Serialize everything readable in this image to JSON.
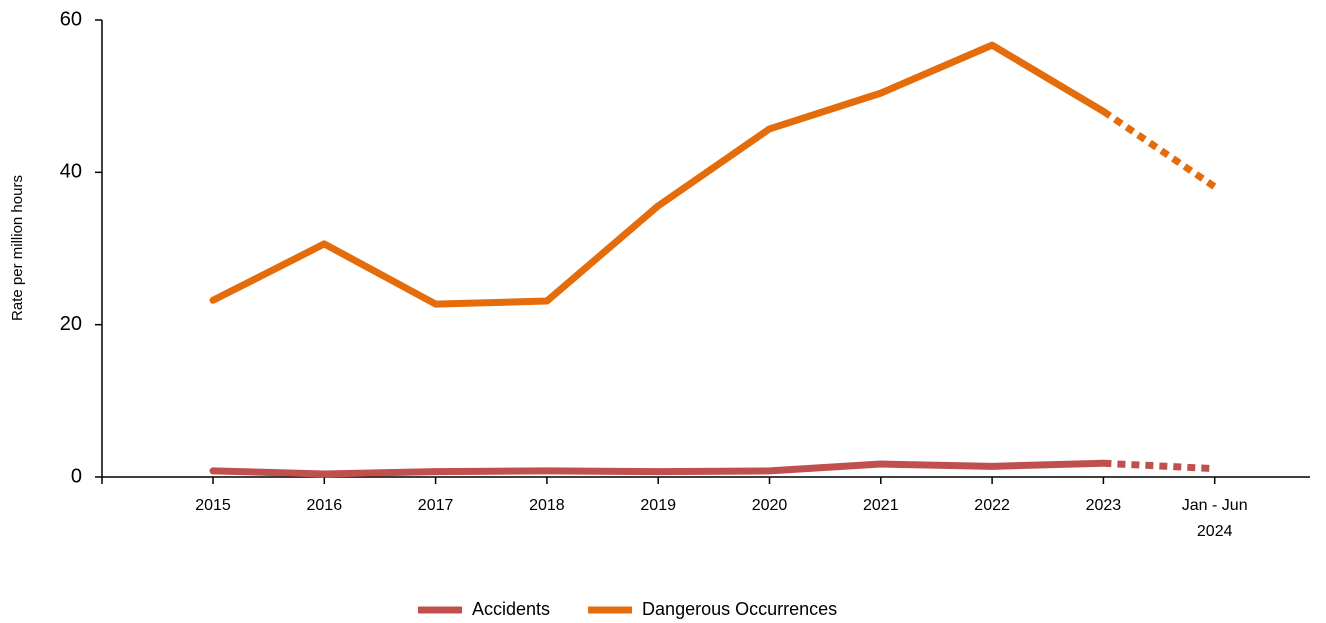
{
  "chart_data": {
    "type": "line",
    "ylabel": "Rate per million hours",
    "categories": [
      "2015",
      "2016",
      "2017",
      "2018",
      "2019",
      "2020",
      "2021",
      "2022",
      "2023",
      "Jan - Jun 2024"
    ],
    "series": [
      {
        "name": "Accidents",
        "color": "#c0504d",
        "values": [
          0.8,
          0.4,
          0.7,
          0.8,
          0.7,
          0.8,
          1.7,
          1.4,
          1.8,
          1.1
        ]
      },
      {
        "name": "Dangerous Occurrences",
        "color": "#e46c0a",
        "values": [
          23.2,
          30.6,
          22.7,
          23.1,
          35.6,
          45.7,
          50.4,
          56.7,
          48.0,
          38.1
        ]
      }
    ],
    "ylim": [
      0,
      60
    ],
    "yticks": [
      0,
      20,
      40,
      60
    ],
    "dashed_last_segment": true,
    "legend": "bottom"
  }
}
